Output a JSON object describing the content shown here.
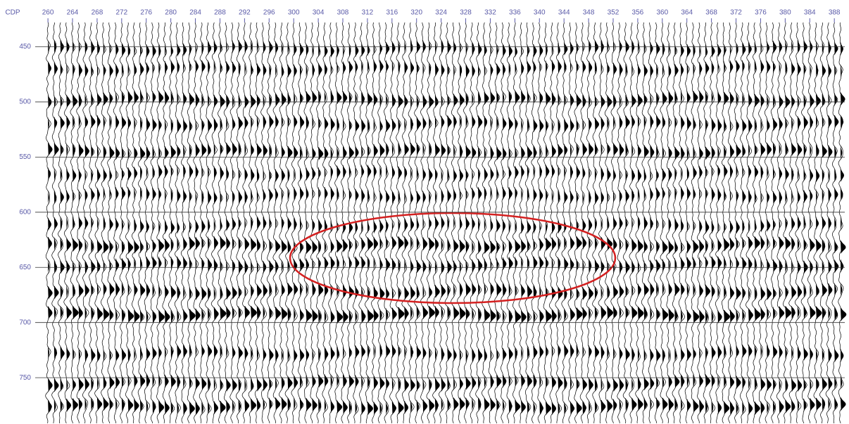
{
  "chart_data": {
    "type": "seismic",
    "x_label": "CDP",
    "xlim": [
      259.3,
      389.7
    ],
    "xticks": [
      260,
      264,
      268,
      272,
      276,
      280,
      284,
      288,
      292,
      296,
      300,
      304,
      308,
      312,
      316,
      320,
      324,
      328,
      332,
      336,
      340,
      344,
      348,
      352,
      356,
      360,
      364,
      368,
      372,
      376,
      380,
      384,
      388
    ],
    "ylim": [
      428,
      792
    ],
    "yticks": [
      450,
      500,
      550,
      600,
      650,
      700,
      750
    ],
    "values": [
      452,
      470,
      498,
      520,
      545,
      565,
      585,
      612,
      630,
      648,
      672,
      693,
      728,
      755,
      776
    ],
    "amplitudes": [
      0.6,
      0.6,
      0.8,
      0.7,
      0.8,
      0.6,
      0.6,
      0.6,
      0.9,
      0.7,
      0.8,
      1.0,
      0.7,
      0.8,
      0.9
    ],
    "color": "#000000",
    "grid": true
  }
}
